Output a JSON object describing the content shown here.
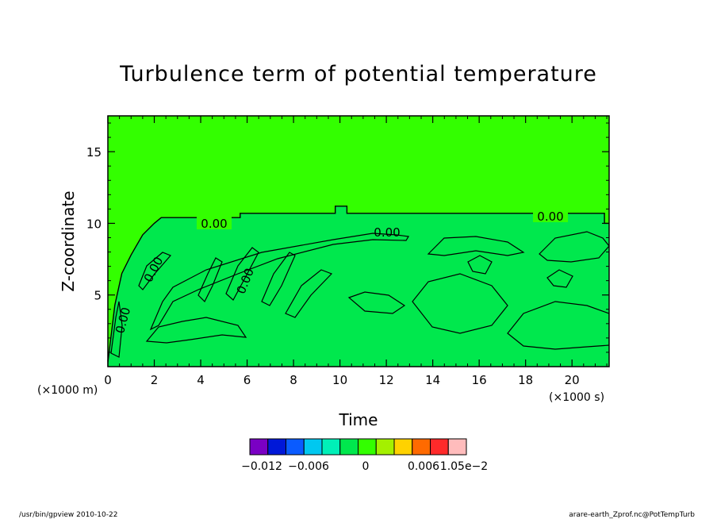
{
  "chart_data": {
    "type": "heatmap",
    "title": "Turbulence term of potential temperature",
    "xlabel": "Time",
    "ylabel": "Z-coordinate",
    "x_unit": "(×1000 s)",
    "y_unit": "(×1000 m)",
    "xlim": [
      0,
      21.6
    ],
    "ylim": [
      0,
      17.5
    ],
    "x_ticks": [
      "0",
      "2",
      "4",
      "6",
      "8",
      "10",
      "12",
      "14",
      "16",
      "18",
      "20"
    ],
    "x_tick_values": [
      0,
      2,
      4,
      6,
      8,
      10,
      12,
      14,
      16,
      18,
      20
    ],
    "y_ticks": [
      "5",
      "10",
      "15"
    ],
    "y_tick_values": [
      5,
      10,
      15
    ],
    "contour_labels": [
      "0.00",
      "0.00",
      "0.00",
      "0.00",
      "0.00",
      "0.00"
    ],
    "contour_level": 0.0,
    "background_color": "#33ff00",
    "fill_color": "#00e84d",
    "boundary_layer_top": [
      {
        "x": 0.0,
        "z": 0.3
      },
      {
        "x": 0.3,
        "z": 4.3
      },
      {
        "x": 0.6,
        "z": 6.5
      },
      {
        "x": 1.0,
        "z": 7.8
      },
      {
        "x": 1.5,
        "z": 9.2
      },
      {
        "x": 2.0,
        "z": 10.0
      },
      {
        "x": 2.3,
        "z": 10.4
      },
      {
        "x": 5.7,
        "z": 10.4
      },
      {
        "x": 5.7,
        "z": 10.7
      },
      {
        "x": 9.8,
        "z": 10.7
      },
      {
        "x": 9.8,
        "z": 11.2
      },
      {
        "x": 10.3,
        "z": 11.2
      },
      {
        "x": 10.3,
        "z": 10.7
      },
      {
        "x": 21.4,
        "z": 10.7
      },
      {
        "x": 21.4,
        "z": 10.0
      },
      {
        "x": 21.6,
        "z": 10.0
      }
    ],
    "colorbar": {
      "ticks": [
        "−0.012",
        "−0.006",
        "0",
        "0.006",
        "1.05e−2"
      ],
      "colors": [
        "#7a00c4",
        "#0018d8",
        "#0a5bff",
        "#00c8f0",
        "#00f0b8",
        "#00e84d",
        "#33ff00",
        "#a4f000",
        "#ffd200",
        "#ff6a00",
        "#ff2a2a",
        "#ffbcbc"
      ]
    }
  },
  "footer": {
    "left": "/usr/bin/gpview  2010-10-22",
    "right": "arare-earth_Zprof.nc@PotTempTurb"
  }
}
